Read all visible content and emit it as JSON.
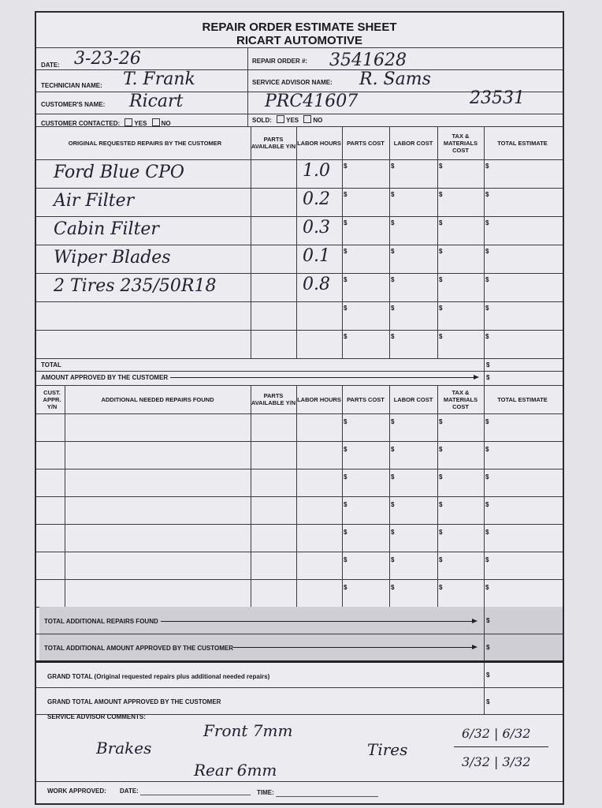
{
  "form": {
    "title": "REPAIR ORDER ESTIMATE SHEET",
    "company": "RICART AUTOMOTIVE",
    "labels": {
      "date": "DATE:",
      "repair_order": "REPAIR ORDER #:",
      "technician": "TECHNICIAN NAME:",
      "service_advisor": "SERVICE ADVISOR NAME:",
      "customer": "CUSTOMER'S NAME:",
      "customer_contacted": "CUSTOMER CONTACTED:",
      "sold": "SOLD:",
      "yes": "YES",
      "no": "NO"
    },
    "values": {
      "date": "3-23-26",
      "repair_order": "3541628",
      "technician": "T. Frank",
      "service_advisor": "R. Sams",
      "customer": "Ricart",
      "vehicle_id": "PRC41607",
      "number": "23531"
    }
  },
  "original_table": {
    "headers": [
      "ORIGINAL REQUESTED REPAIRS BY THE CUSTOMER",
      "PARTS AVAILABLE Y/N",
      "LABOR HOURS",
      "PARTS COST",
      "LABOR COST",
      "TAX & MATERIALS COST",
      "TOTAL ESTIMATE"
    ],
    "rows": [
      {
        "repair": "Ford Blue CPO",
        "hours": "1.0"
      },
      {
        "repair": "Air Filter",
        "hours": "0.2"
      },
      {
        "repair": "Cabin Filter",
        "hours": "0.3"
      },
      {
        "repair": "Wiper Blades",
        "hours": "0.1"
      },
      {
        "repair": "2 Tires 235/50R18",
        "hours": "0.8"
      },
      {
        "repair": "",
        "hours": ""
      },
      {
        "repair": "",
        "hours": ""
      }
    ],
    "currency": "$",
    "total_label": "TOTAL",
    "approved_label": "AMOUNT APPROVED BY THE CUSTOMER"
  },
  "additional_table": {
    "headers": [
      "CUST. APPR. Y/N",
      "ADDITIONAL NEEDED REPAIRS FOUND",
      "PARTS AVAILABLE Y/N",
      "LABOR HOURS",
      "PARTS COST",
      "LABOR COST",
      "TAX & MATERIALS COST",
      "TOTAL ESTIMATE"
    ],
    "row_count": 7,
    "total_label": "TOTAL ADDITIONAL REPAIRS FOUND",
    "approved_label": "TOTAL ADDITIONAL AMOUNT APPROVED BY THE CUSTOMER"
  },
  "grand": {
    "total_label": "GRAND TOTAL (Original requested repairs plus additional needed repairs)",
    "approved_label": "GRAND TOTAL AMOUNT APPROVED BY THE CUSTOMER"
  },
  "comments": {
    "label": "SERVICE ADVISOR COMMENTS:",
    "brakes": "Brakes",
    "front": "Front 7mm",
    "rear": "Rear 6mm",
    "tires": "Tires",
    "tire_front": "6/32 | 6/32",
    "tire_rear": "3/32 | 3/32"
  },
  "footer": {
    "work_approved": "WORK APPROVED:",
    "date": "DATE:",
    "time": "TIME:"
  }
}
